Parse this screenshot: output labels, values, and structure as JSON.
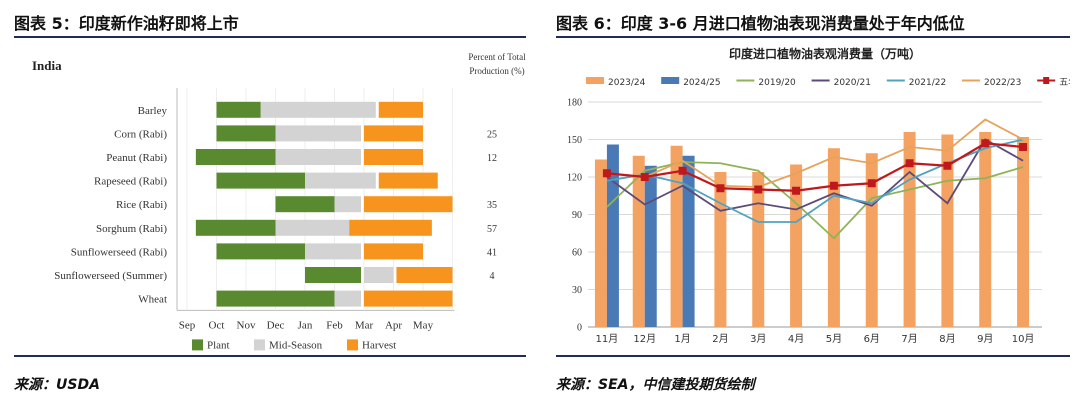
{
  "left": {
    "title": "图表 5：印度新作油籽即将上市",
    "source": "来源：USDA",
    "chart_data": {
      "type": "gantt",
      "title": "India",
      "right_axis_label": [
        "Percent of Total",
        "Production (%)"
      ],
      "months": [
        "Sep",
        "Oct",
        "Nov",
        "Dec",
        "Jan",
        "Feb",
        "Mar",
        "Apr",
        "May"
      ],
      "colors": {
        "Plant": "#5a8a2f",
        "Mid-Season": "#d3d3d3",
        "Harvest": "#f7941d"
      },
      "legend": [
        "Plant",
        "Mid-Season",
        "Harvest"
      ],
      "crops": [
        {
          "name": "Barley",
          "plant": [
            1.0,
            2.5
          ],
          "mid": [
            2.5,
            6.4
          ],
          "harvest": [
            6.5,
            8.0
          ],
          "pct": ""
        },
        {
          "name": "Corn (Rabi)",
          "plant": [
            1.0,
            3.0
          ],
          "mid": [
            3.0,
            5.9
          ],
          "harvest": [
            6.0,
            8.0
          ],
          "pct": "25"
        },
        {
          "name": "Peanut (Rabi)",
          "plant": [
            0.3,
            3.0
          ],
          "mid": [
            3.0,
            5.9
          ],
          "harvest": [
            6.0,
            8.0
          ],
          "pct": "12"
        },
        {
          "name": "Rapeseed (Rabi)",
          "plant": [
            1.0,
            4.0
          ],
          "mid": [
            4.0,
            6.4
          ],
          "harvest": [
            6.5,
            8.5
          ],
          "pct": ""
        },
        {
          "name": "Rice (Rabi)",
          "plant": [
            3.0,
            5.0
          ],
          "mid": [
            5.0,
            5.9
          ],
          "harvest": [
            6.0,
            9.0
          ],
          "pct": "35"
        },
        {
          "name": "Sorghum (Rabi)",
          "plant": [
            0.3,
            3.0
          ],
          "mid": [
            3.0,
            5.5
          ],
          "harvest": [
            5.5,
            8.3
          ],
          "pct": "57"
        },
        {
          "name": "Sunflowerseed (Rabi)",
          "plant": [
            1.0,
            4.0
          ],
          "mid": [
            4.0,
            5.9
          ],
          "harvest": [
            6.0,
            8.0
          ],
          "pct": "41"
        },
        {
          "name": "Sunflowerseed (Summer)",
          "plant": [
            4.0,
            5.9
          ],
          "mid": [
            6.0,
            7.0
          ],
          "harvest": [
            7.1,
            9.0
          ],
          "pct": "4"
        },
        {
          "name": "Wheat",
          "plant": [
            1.0,
            5.0
          ],
          "mid": [
            5.0,
            5.9
          ],
          "harvest": [
            6.0,
            9.0
          ],
          "pct": ""
        }
      ]
    }
  },
  "right": {
    "title": "图表 6：印度 3-6 月进口植物油表现消费量处于年内低位",
    "source": "来源：SEA，中信建投期货绘制",
    "chart_data": {
      "type": "bar+line",
      "title": "印度进口植物油表观消费量（万吨）",
      "categories": [
        "11月",
        "12月",
        "1月",
        "2月",
        "3月",
        "4月",
        "5月",
        "6月",
        "7月",
        "8月",
        "9月",
        "10月"
      ],
      "ylim": [
        0,
        180
      ],
      "yticks": [
        0,
        30,
        60,
        90,
        120,
        150,
        180
      ],
      "bar_series": [
        {
          "name": "2023/24",
          "color": "#f4a261",
          "values": [
            134,
            137,
            145,
            124,
            124,
            130,
            143,
            139,
            156,
            154,
            156,
            152
          ]
        },
        {
          "name": "2024/25",
          "color": "#4a7ab5",
          "values": [
            146,
            129,
            137,
            null,
            null,
            null,
            null,
            null,
            null,
            null,
            null,
            null
          ]
        }
      ],
      "line_series": [
        {
          "name": "2019/20",
          "color": "#8fb356",
          "values": [
            96,
            125,
            132,
            131,
            125,
            99,
            71,
            103,
            110,
            117,
            119,
            128
          ]
        },
        {
          "name": "2020/21",
          "color": "#5e4a7a",
          "values": [
            120,
            98,
            113,
            93,
            99,
            94,
            107,
            97,
            124,
            99,
            150,
            133
          ]
        },
        {
          "name": "2021/22",
          "color": "#4fa3c0",
          "values": [
            117,
            122,
            115,
            99,
            84,
            84,
            105,
            99,
            118,
            131,
            143,
            150
          ]
        },
        {
          "name": "2022/23",
          "color": "#e7a35a",
          "values": [
            123,
            120,
            133,
            113,
            112,
            123,
            136,
            131,
            144,
            141,
            166,
            150
          ]
        },
        {
          "name": "五年均值",
          "color": "#c0191d",
          "values": [
            123,
            120,
            125,
            111,
            110,
            109,
            113,
            115,
            131,
            129,
            147,
            144
          ],
          "markers": true
        }
      ]
    }
  }
}
